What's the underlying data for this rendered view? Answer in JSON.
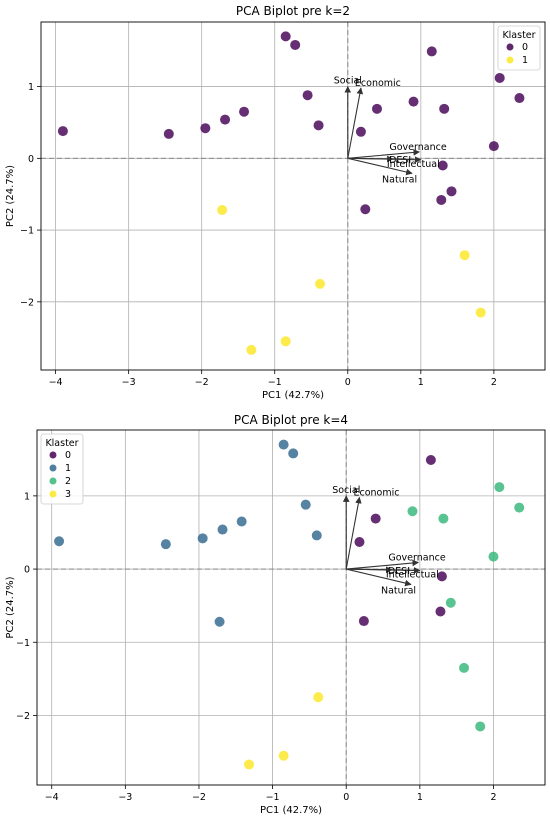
{
  "chart_data": [
    {
      "type": "scatter",
      "title": "PCA Biplot pre k=2",
      "xlabel": "PC1 (42.7%)",
      "ylabel": "PC2 (24.7%)",
      "xlim": [
        -4.2,
        2.7
      ],
      "ylim": [
        -2.95,
        1.9
      ],
      "xticks": [
        -4,
        -3,
        -2,
        -1,
        0,
        1,
        2
      ],
      "yticks": [
        -2,
        -1,
        0,
        1
      ],
      "grid": true,
      "legend": {
        "title": "Klaster",
        "placement": "top-right",
        "entries": [
          "0",
          "1"
        ]
      },
      "series": [
        {
          "name": "0",
          "color": "#440154",
          "points": [
            [
              -3.9,
              0.38
            ],
            [
              -2.45,
              0.34
            ],
            [
              -1.95,
              0.42
            ],
            [
              -1.68,
              0.54
            ],
            [
              -1.42,
              0.65
            ],
            [
              -0.85,
              1.7
            ],
            [
              -0.72,
              1.58
            ],
            [
              -0.55,
              0.88
            ],
            [
              -0.4,
              0.46
            ],
            [
              0.18,
              0.37
            ],
            [
              0.4,
              0.69
            ],
            [
              0.9,
              0.79
            ],
            [
              1.15,
              1.49
            ],
            [
              1.32,
              0.69
            ],
            [
              2.08,
              1.12
            ],
            [
              2.35,
              0.84
            ],
            [
              2.0,
              0.17
            ],
            [
              1.3,
              -0.1
            ],
            [
              1.42,
              -0.46
            ],
            [
              1.28,
              -0.58
            ],
            [
              0.24,
              -0.71
            ]
          ]
        },
        {
          "name": "1",
          "color": "#fde725",
          "points": [
            [
              -1.72,
              -0.72
            ],
            [
              1.6,
              -1.35
            ],
            [
              1.82,
              -2.15
            ],
            [
              -0.38,
              -1.75
            ],
            [
              -0.85,
              -2.55
            ],
            [
              -1.32,
              -2.67
            ]
          ]
        }
      ],
      "loadings": [
        {
          "label": "Social",
          "x": 0.0,
          "y": 1.0
        },
        {
          "label": "Economic",
          "x": 0.18,
          "y": 0.98
        },
        {
          "label": "Governance",
          "x": 0.98,
          "y": 0.09
        },
        {
          "label": "DESI",
          "x": 0.62,
          "y": -0.01
        },
        {
          "label": "Intellectual",
          "x": 1.0,
          "y": -0.02
        },
        {
          "label": "Natural",
          "x": 0.88,
          "y": -0.21
        }
      ]
    },
    {
      "type": "scatter",
      "title": "PCA Biplot pre k=4",
      "xlabel": "PC1 (42.7%)",
      "ylabel": "PC2 (24.7%)",
      "xlim": [
        -4.2,
        2.7
      ],
      "ylim": [
        -2.95,
        1.9
      ],
      "xticks": [
        -4,
        -3,
        -2,
        -1,
        0,
        1,
        2
      ],
      "yticks": [
        -2,
        -1,
        0,
        1
      ],
      "grid": true,
      "legend": {
        "title": "Klaster",
        "placement": "top-left",
        "entries": [
          "0",
          "1",
          "2",
          "3"
        ]
      },
      "series": [
        {
          "name": "0",
          "color": "#440154",
          "points": [
            [
              1.15,
              1.49
            ],
            [
              0.4,
              0.69
            ],
            [
              0.18,
              0.37
            ],
            [
              1.3,
              -0.1
            ],
            [
              1.28,
              -0.58
            ],
            [
              0.24,
              -0.71
            ]
          ]
        },
        {
          "name": "1",
          "color": "#31688e",
          "points": [
            [
              -3.9,
              0.38
            ],
            [
              -2.45,
              0.34
            ],
            [
              -1.95,
              0.42
            ],
            [
              -1.68,
              0.54
            ],
            [
              -1.42,
              0.65
            ],
            [
              -0.85,
              1.7
            ],
            [
              -0.72,
              1.58
            ],
            [
              -0.55,
              0.88
            ],
            [
              -0.4,
              0.46
            ],
            [
              -1.72,
              -0.72
            ]
          ]
        },
        {
          "name": "2",
          "color": "#35b779",
          "points": [
            [
              2.08,
              1.12
            ],
            [
              2.35,
              0.84
            ],
            [
              0.9,
              0.79
            ],
            [
              1.32,
              0.69
            ],
            [
              2.0,
              0.17
            ],
            [
              1.42,
              -0.46
            ],
            [
              1.6,
              -1.35
            ],
            [
              1.82,
              -2.15
            ]
          ]
        },
        {
          "name": "3",
          "color": "#fde725",
          "points": [
            [
              -0.38,
              -1.75
            ],
            [
              -0.85,
              -2.55
            ],
            [
              -1.32,
              -2.67
            ]
          ]
        }
      ],
      "loadings": [
        {
          "label": "Social",
          "x": 0.0,
          "y": 1.0
        },
        {
          "label": "Economic",
          "x": 0.18,
          "y": 0.98
        },
        {
          "label": "Governance",
          "x": 0.98,
          "y": 0.09
        },
        {
          "label": "DESI",
          "x": 0.62,
          "y": -0.01
        },
        {
          "label": "Intellectual",
          "x": 1.0,
          "y": -0.02
        },
        {
          "label": "Natural",
          "x": 0.88,
          "y": -0.21
        }
      ]
    }
  ]
}
